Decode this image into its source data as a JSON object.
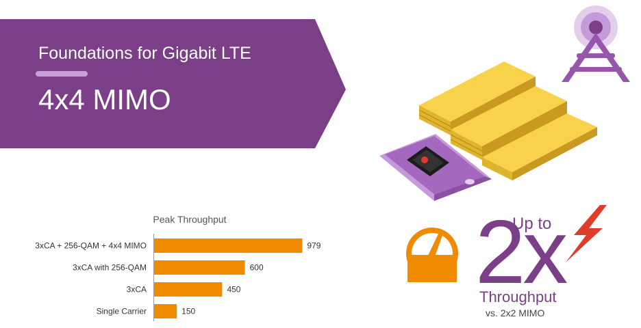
{
  "banner": {
    "title": "Foundations for Gigabit LTE",
    "subtitle": "4x4 MIMO",
    "color": "#7b3f87"
  },
  "chart_data": {
    "type": "bar",
    "orientation": "horizontal",
    "title": "Peak Throughput",
    "categories": [
      "3xCA + 256-QAM + 4x4 MIMO",
      "3xCA with 256-QAM",
      "3xCA",
      "Single Carrier"
    ],
    "values": [
      979,
      600,
      450,
      150
    ],
    "value_labels": [
      "979",
      "600",
      "450",
      "150"
    ],
    "xlim": [
      0,
      1000
    ],
    "grid": false,
    "bar_color": "#f08a00"
  },
  "badge": {
    "up_to": "Up to",
    "multiplier": "2x",
    "metric": "Throughput",
    "comparison": "vs. 2x2 MIMO",
    "text_color": "#7b3f87",
    "gauge_color": "#f08a00",
    "bolt_color": "#e03c2c"
  },
  "illustration": {
    "icons": [
      "cell-tower-icon",
      "phone-icon",
      "chip-icon",
      "gold-bars-icon"
    ]
  }
}
